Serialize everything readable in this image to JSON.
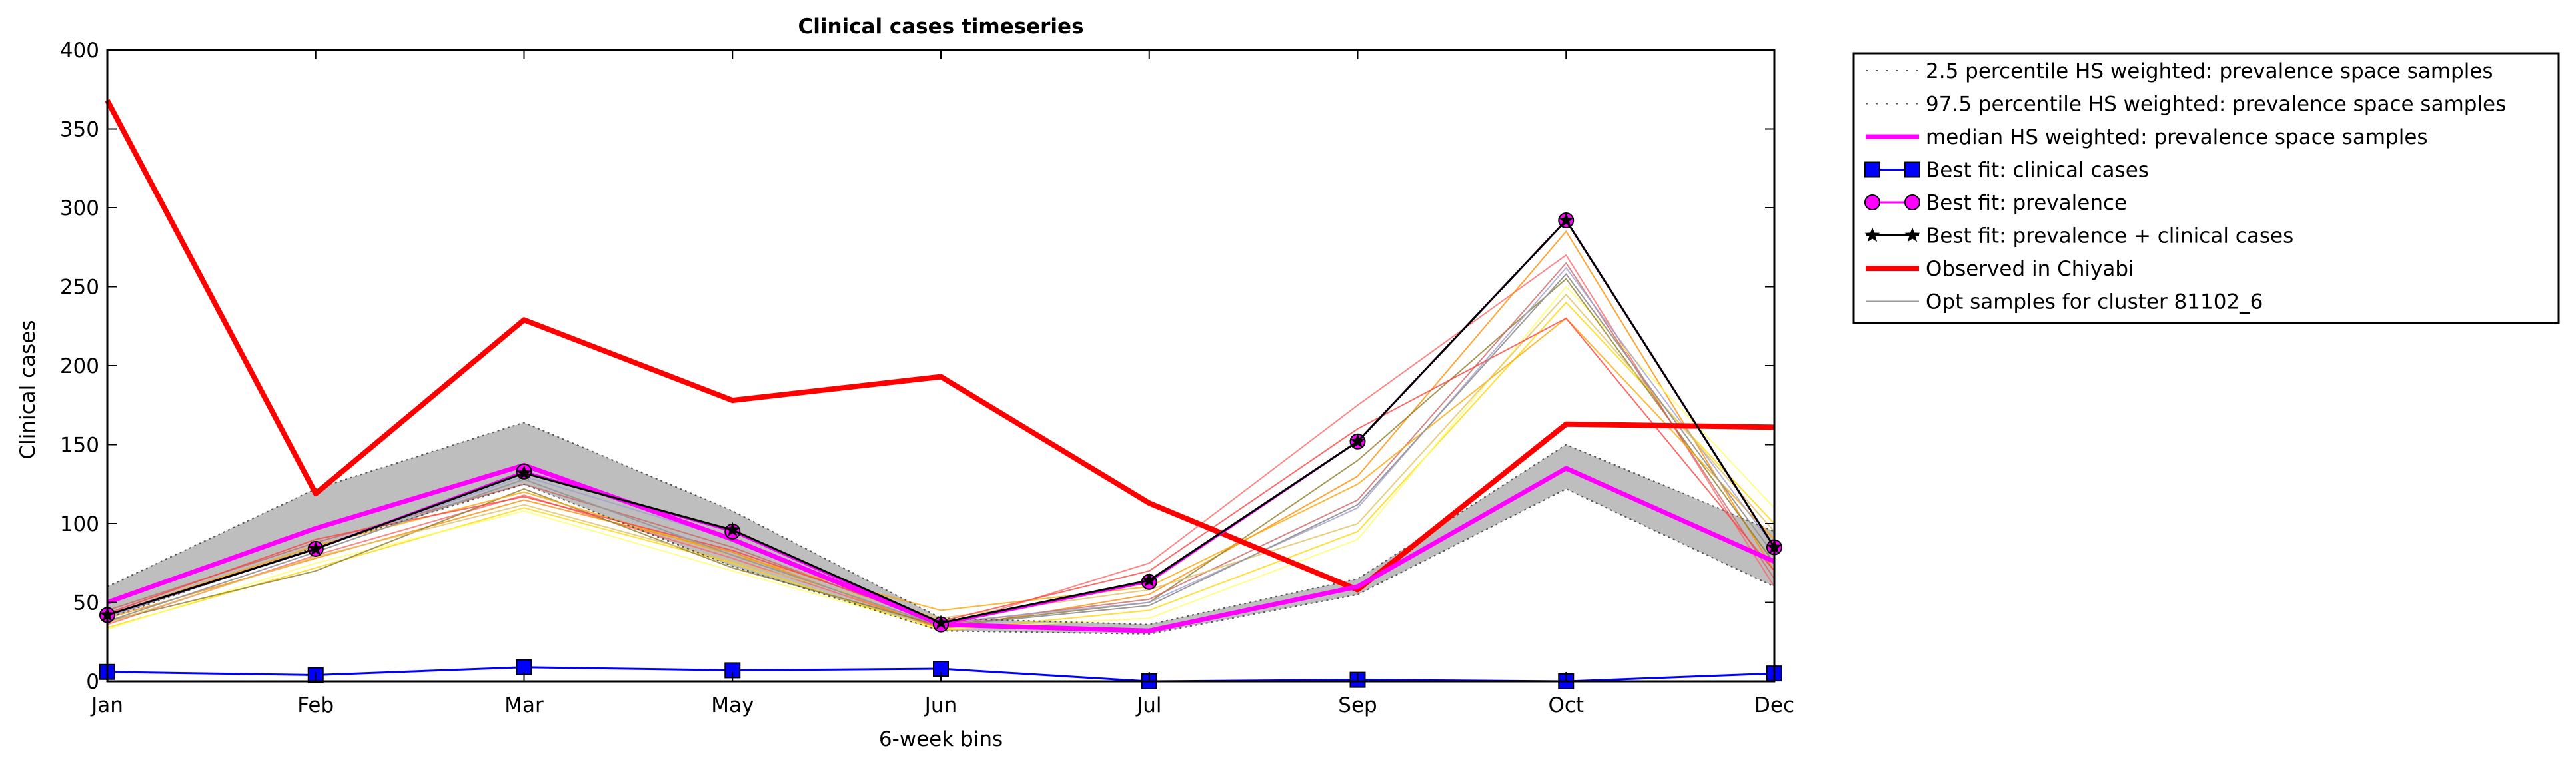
{
  "chart_data": {
    "type": "line",
    "title": "Clinical cases timeseries",
    "xlabel": "6-week bins",
    "ylabel": "Clinical cases",
    "categories": [
      "Jan",
      "Feb",
      "Mar",
      "May",
      "Jun",
      "Jul",
      "Sep",
      "Oct",
      "Dec"
    ],
    "ylim": [
      0,
      400
    ],
    "yticks": [
      0,
      50,
      100,
      150,
      200,
      250,
      300,
      350,
      400
    ],
    "grid": false,
    "legend_position": "outside-top-right",
    "band": {
      "lower": [
        40,
        85,
        125,
        73,
        32,
        30,
        55,
        122,
        60
      ],
      "upper": [
        60,
        122,
        164,
        108,
        40,
        36,
        65,
        150,
        95
      ],
      "fill": "#bebebe"
    },
    "series": [
      {
        "name": "2.5 percentile HS weighted: prevalence space samples",
        "style": "dotted",
        "color": "#555555",
        "values": [
          40,
          85,
          125,
          73,
          32,
          30,
          55,
          122,
          60
        ]
      },
      {
        "name": "97.5 percentile HS weighted: prevalence space samples",
        "style": "dotted",
        "color": "#555555",
        "values": [
          60,
          122,
          164,
          108,
          40,
          36,
          65,
          150,
          95
        ]
      },
      {
        "name": "median HS weighted: prevalence space samples",
        "style": "solid",
        "color": "#ff00ff",
        "values": [
          50,
          97,
          137,
          90,
          36,
          32,
          60,
          135,
          76
        ]
      },
      {
        "name": "Best fit: clinical cases",
        "style": "solid-square",
        "color": "#0000ff",
        "values": [
          6,
          4,
          9,
          7,
          8,
          0,
          1,
          0,
          5
        ]
      },
      {
        "name": "Best fit: prevalence",
        "style": "solid-circle",
        "color": "#ff00ff",
        "values": [
          42,
          84,
          133,
          95,
          36,
          63,
          152,
          292,
          85
        ]
      },
      {
        "name": "Best fit: prevalence + clinical cases",
        "style": "solid-star",
        "color": "#000000",
        "values": [
          42,
          84,
          132,
          96,
          37,
          64,
          152,
          292,
          85
        ]
      },
      {
        "name": "Observed in Chiyabi",
        "style": "solid-thick",
        "color": "#ff0000",
        "values": [
          368,
          119,
          229,
          178,
          193,
          113,
          58,
          163,
          161
        ]
      },
      {
        "name": "Opt samples for cluster 81102_6",
        "style": "thin",
        "color": "#999999",
        "values": [
          38,
          82,
          128,
          80,
          35,
          48,
          112,
          258,
          80
        ]
      }
    ],
    "samples": [
      {
        "color": "#ff6666",
        "values": [
          36,
          80,
          118,
          78,
          34,
          75,
          175,
          270,
          60
        ]
      },
      {
        "color": "#ff8c00",
        "values": [
          40,
          78,
          115,
          82,
          33,
          55,
          130,
          285,
          70
        ]
      },
      {
        "color": "#ffd700",
        "values": [
          34,
          72,
          110,
          75,
          32,
          45,
          95,
          240,
          100
        ]
      },
      {
        "color": "#ffff66",
        "values": [
          33,
          75,
          108,
          70,
          33,
          40,
          90,
          250,
          110
        ]
      },
      {
        "color": "#8b7d2a",
        "values": [
          38,
          70,
          122,
          72,
          35,
          50,
          140,
          255,
          75
        ]
      },
      {
        "color": "#cc6666",
        "values": [
          45,
          88,
          125,
          85,
          36,
          52,
          115,
          265,
          65
        ]
      },
      {
        "color": "#ffa500",
        "values": [
          42,
          86,
          120,
          80,
          45,
          60,
          125,
          230,
          90
        ]
      },
      {
        "color": "#a0a0d0",
        "values": [
          41,
          84,
          130,
          90,
          37,
          50,
          110,
          262,
          85
        ]
      },
      {
        "color": "#e0c060",
        "values": [
          37,
          79,
          112,
          76,
          40,
          58,
          100,
          245,
          95
        ]
      },
      {
        "color": "#ff4040",
        "values": [
          43,
          90,
          117,
          83,
          38,
          70,
          160,
          230,
          70
        ]
      }
    ]
  }
}
